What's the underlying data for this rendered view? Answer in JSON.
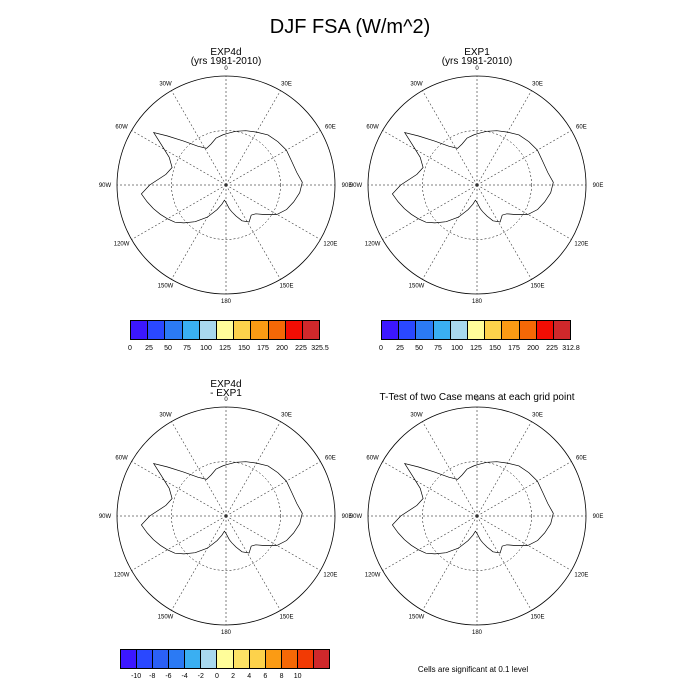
{
  "title": "DJF FSA (W/m^2)",
  "panels": [
    {
      "title1": "EXP4d",
      "title2": "(yrs 1981-2010)"
    },
    {
      "title1": "EXP1",
      "title2": "(yrs 1981-2010)"
    },
    {
      "title1": "EXP4d",
      "title2": "- EXP1"
    },
    {
      "title1": "T-Test of two Case means at each grid point",
      "title2": ""
    }
  ],
  "lon_labels": [
    "0",
    "30E",
    "60E",
    "90E",
    "120E",
    "150E",
    "180",
    "150W",
    "120W",
    "90W",
    "60W",
    "30W"
  ],
  "colorbars": [
    {
      "colors": [
        "#3c17ff",
        "#2a48ff",
        "#2b7af4",
        "#3aaff2",
        "#a8d8ef",
        "#fffd9a",
        "#fdd24b",
        "#fb9b14",
        "#f56806",
        "#f20d04",
        "#d0282b"
      ],
      "labels": [
        "0",
        "25",
        "50",
        "75",
        "100",
        "125",
        "150",
        "175",
        "200",
        "225",
        "325.5"
      ]
    },
    {
      "colors": [
        "#3c17ff",
        "#2a48ff",
        "#2b7af4",
        "#3aaff2",
        "#a8d8ef",
        "#fffd9a",
        "#fdd24b",
        "#fb9b14",
        "#f56806",
        "#f20d04",
        "#d0282b"
      ],
      "labels": [
        "0",
        "25",
        "50",
        "75",
        "100",
        "125",
        "150",
        "175",
        "200",
        "225",
        "312.8"
      ]
    },
    {
      "colors": [
        "#3c17ff",
        "#2a48ff",
        "#2b60f6",
        "#2b7af4",
        "#3aaff2",
        "#a8d8ef",
        "#fffd9a",
        "#fde265",
        "#fdd24b",
        "#fb9b14",
        "#f56806",
        "#f23a04",
        "#d0282b"
      ],
      "labels": [
        "-10",
        "-8",
        "-6",
        "-4",
        "-2",
        "0",
        "2",
        "4",
        "6",
        "8",
        "10"
      ]
    }
  ],
  "significance_note": "Cells are significant at 0.1 level"
}
